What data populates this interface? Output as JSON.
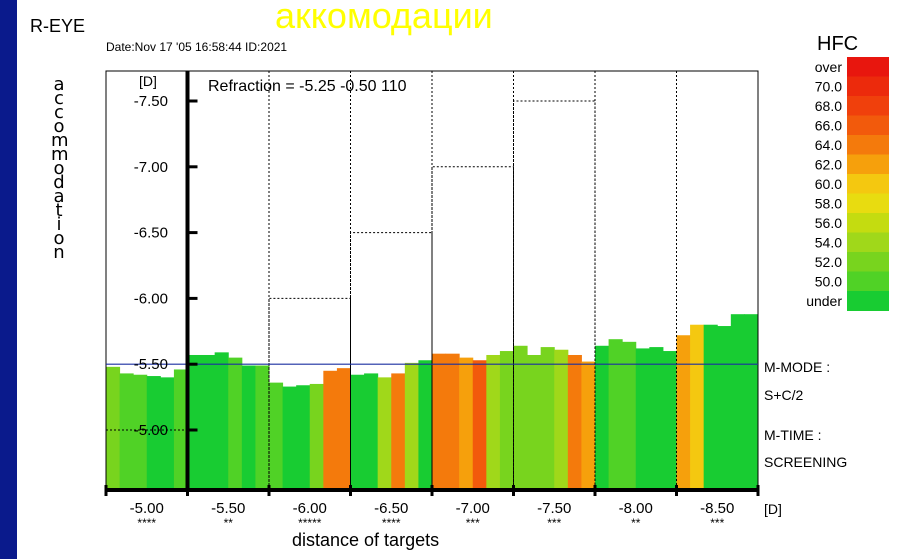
{
  "page": {
    "title": "аккомодации",
    "eye": "R-EYE",
    "date_line": "Date:Nov 17 '05 16:58:44   ID:2021",
    "refraction": "Refraction = -5.25 -0.50 110",
    "mode_label": "M-MODE :",
    "mode_value": "S+C/2",
    "time_label": "M-TIME :",
    "time_value": "SCREENING"
  },
  "colors": {
    "background": "#0a1a8c",
    "grid": "#000000",
    "reference_line": "#1a2fa0"
  },
  "chart_data": {
    "type": "bar",
    "ylabel": "accommodation",
    "y_unit": "[D]",
    "x_unit": "[D]",
    "xlabel": "distance of targets",
    "y_ticks": [
      "-7.50",
      "-7.00",
      "-6.50",
      "-6.00",
      "-5.50",
      "-5.00"
    ],
    "ylim": [
      -4.9,
      -7.7
    ],
    "x_categories": [
      "-5.00",
      "-5.50",
      "-6.00",
      "-6.50",
      "-7.00",
      "-7.50",
      "-8.00",
      "-8.50"
    ],
    "x_stars": [
      "****",
      "**",
      "*****",
      "****",
      "***",
      "***",
      "**",
      "***"
    ],
    "reference_line": -5.5,
    "target_steps": [
      -5.0,
      -5.5,
      -6.0,
      -6.5,
      -7.0,
      -7.5,
      -8.0,
      -8.5
    ],
    "legend": {
      "title": "HFC",
      "entries": [
        {
          "label": "over",
          "color": "#e8160e"
        },
        {
          "label": "70.0",
          "color": "#ec2a0c"
        },
        {
          "label": "68.0",
          "color": "#f0400c"
        },
        {
          "label": "66.0",
          "color": "#f25a0c"
        },
        {
          "label": "64.0",
          "color": "#f47a0c"
        },
        {
          "label": "62.0",
          "color": "#f6a00c"
        },
        {
          "label": "60.0",
          "color": "#f4c810"
        },
        {
          "label": "58.0",
          "color": "#e8dc10"
        },
        {
          "label": "56.0",
          "color": "#c4dc10"
        },
        {
          "label": "54.0",
          "color": "#a0d81a"
        },
        {
          "label": "52.0",
          "color": "#78d41e"
        },
        {
          "label": "50.0",
          "color": "#50d226"
        },
        {
          "label": "under",
          "color": "#18cc32"
        }
      ]
    },
    "series": [
      {
        "values": [
          -5.48,
          -5.43,
          -5.42,
          -5.41,
          -5.4,
          -5.46
        ],
        "colors": [
          "#78d41e",
          "#50d226",
          "#50d226",
          "#18cc32",
          "#18cc32",
          "#50d226"
        ]
      },
      {
        "values": [
          -5.57,
          -5.57,
          -5.59,
          -5.55,
          -5.49,
          -5.49
        ],
        "colors": [
          "#18cc32",
          "#18cc32",
          "#18cc32",
          "#50d226",
          "#18cc32",
          "#50d226"
        ]
      },
      {
        "values": [
          -5.36,
          -5.33,
          -5.34,
          -5.35,
          -5.45,
          -5.47
        ],
        "colors": [
          "#50d226",
          "#18cc32",
          "#18cc32",
          "#78d41e",
          "#f47a0c",
          "#f47a0c"
        ]
      },
      {
        "values": [
          -5.42,
          -5.43,
          -5.4,
          -5.43,
          -5.51,
          -5.53
        ],
        "colors": [
          "#18cc32",
          "#18cc32",
          "#a0d81a",
          "#f47a0c",
          "#a0d81a",
          "#18cc32"
        ]
      },
      {
        "values": [
          -5.58,
          -5.58,
          -5.55,
          -5.53,
          -5.57,
          -5.6
        ],
        "colors": [
          "#f47a0c",
          "#f47a0c",
          "#f6a00c",
          "#f25a0c",
          "#a0d81a",
          "#78d41e"
        ]
      },
      {
        "values": [
          -5.64,
          -5.57,
          -5.63,
          -5.61,
          -5.57,
          -5.52
        ],
        "colors": [
          "#78d41e",
          "#78d41e",
          "#78d41e",
          "#a0d81a",
          "#f47a0c",
          "#f6a00c"
        ]
      },
      {
        "values": [
          -5.64,
          -5.69,
          -5.67,
          -5.62,
          -5.63,
          -5.6
        ],
        "colors": [
          "#18cc32",
          "#50d226",
          "#50d226",
          "#18cc32",
          "#18cc32",
          "#18cc32"
        ]
      },
      {
        "values": [
          -5.72,
          -5.8,
          -5.8,
          -5.79,
          -5.88,
          -5.88
        ],
        "colors": [
          "#f6a00c",
          "#f4c810",
          "#18cc32",
          "#18cc32",
          "#18cc32",
          "#18cc32"
        ]
      }
    ]
  }
}
